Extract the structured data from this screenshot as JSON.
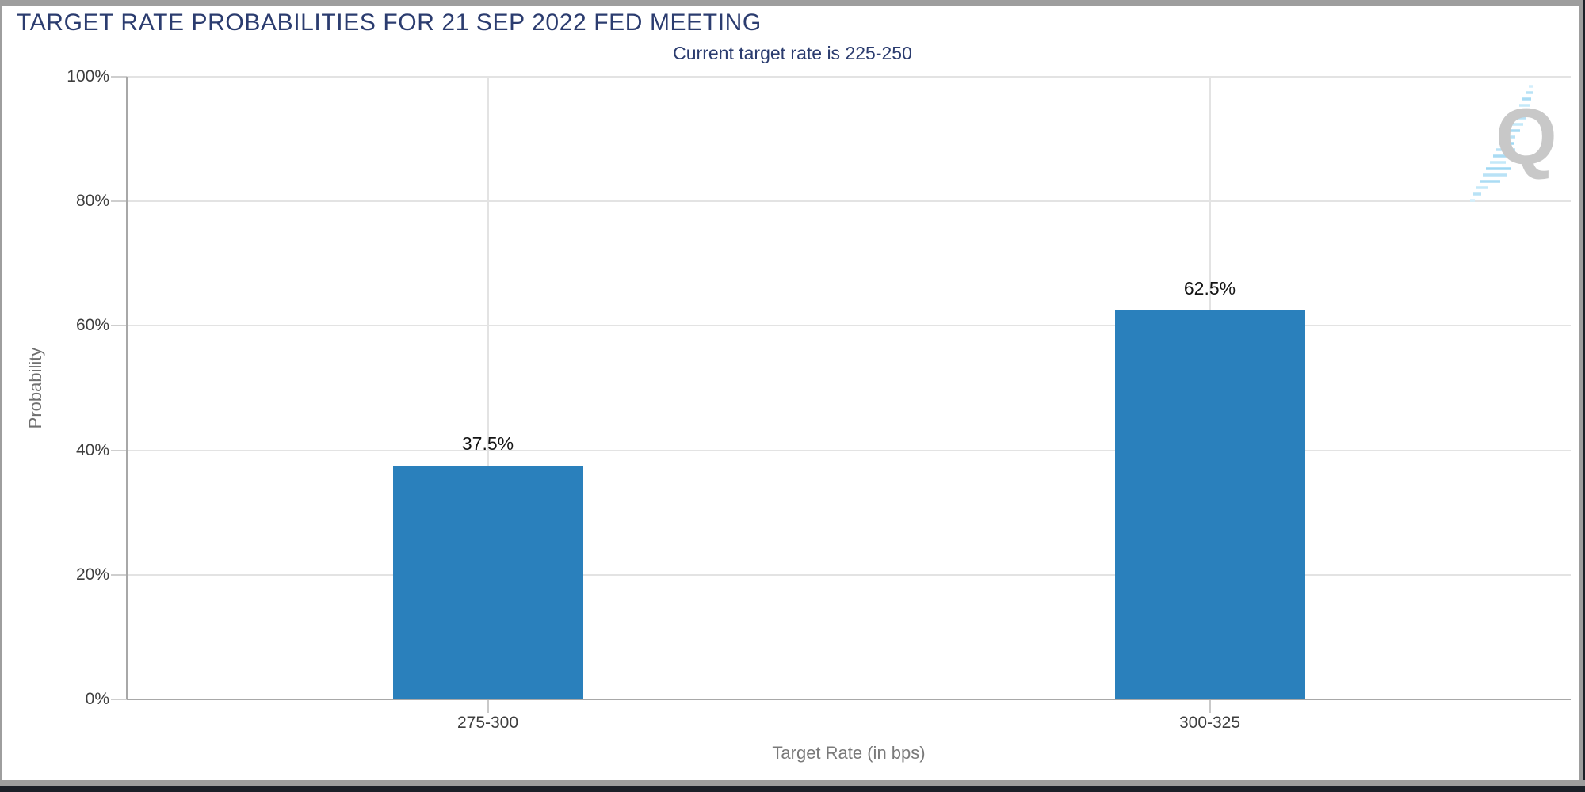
{
  "header": {
    "title": "TARGET RATE PROBABILITIES FOR 21 SEP 2022 FED MEETING",
    "subtitle": "Current target rate is 225-250"
  },
  "chart_data": {
    "type": "bar",
    "title": "TARGET RATE PROBABILITIES FOR 21 SEP 2022 FED MEETING",
    "subtitle": "Current target rate is 225-250",
    "categories": [
      "275-300",
      "300-325"
    ],
    "values": [
      37.5,
      62.5
    ],
    "value_labels": [
      "37.5%",
      "62.5%"
    ],
    "xlabel": "Target Rate (in bps)",
    "ylabel": "Probability",
    "ylim": [
      0,
      100
    ],
    "yticks": [
      0,
      20,
      40,
      60,
      80,
      100
    ],
    "ytick_labels": [
      "0%",
      "20%",
      "40%",
      "60%",
      "80%",
      "100%"
    ],
    "bar_color": "#2a80bc",
    "grid": true,
    "legend": "none",
    "colors": {
      "title": "#2b3c6f",
      "axis_line": "#a8a8a8",
      "gridline": "#e3e3e3",
      "tick_text": "#3e3e3e",
      "axis_title_text": "#7a7a7a",
      "value_label_text": "#141414"
    }
  },
  "logo": {
    "letter": "Q"
  }
}
